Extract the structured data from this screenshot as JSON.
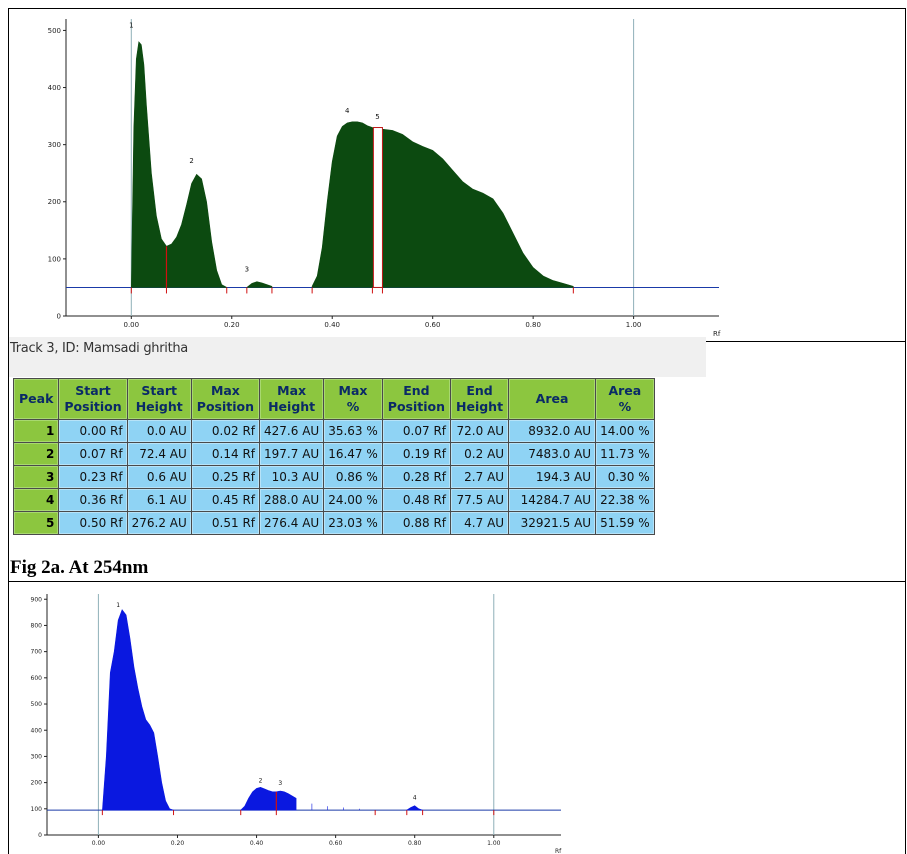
{
  "chart_data": [
    {
      "type": "area",
      "title": "",
      "xlabel": "Rf",
      "ylabel": "",
      "xlim": [
        -0.13,
        1.17
      ],
      "ylim": [
        0,
        520
      ],
      "x_ticks": [
        "0.00",
        "0.20",
        "0.40",
        "0.60",
        "0.80",
        "1.00"
      ],
      "y_ticks": [
        "0",
        "100",
        "200",
        "300",
        "400",
        "500"
      ],
      "fill_color": "#0c4a10",
      "baseline_color": "#1a3aa8",
      "baseline_level": 50,
      "peak_labels": [
        "1",
        "2",
        "3",
        "4",
        "5"
      ],
      "peak_label_pos": [
        [
          0.0,
          505
        ],
        [
          0.12,
          268
        ],
        [
          0.23,
          78
        ],
        [
          0.43,
          355
        ],
        [
          0.49,
          345
        ]
      ],
      "profile": [
        [
          0.0,
          50
        ],
        [
          0.005,
          330
        ],
        [
          0.01,
          450
        ],
        [
          0.015,
          480
        ],
        [
          0.02,
          475
        ],
        [
          0.025,
          440
        ],
        [
          0.03,
          370
        ],
        [
          0.04,
          250
        ],
        [
          0.05,
          175
        ],
        [
          0.06,
          135
        ],
        [
          0.07,
          122
        ],
        [
          0.08,
          126
        ],
        [
          0.09,
          138
        ],
        [
          0.1,
          160
        ],
        [
          0.11,
          195
        ],
        [
          0.12,
          232
        ],
        [
          0.13,
          248
        ],
        [
          0.14,
          240
        ],
        [
          0.15,
          200
        ],
        [
          0.16,
          130
        ],
        [
          0.17,
          80
        ],
        [
          0.18,
          55
        ],
        [
          0.19,
          50
        ],
        [
          0.23,
          50
        ],
        [
          0.24,
          57
        ],
        [
          0.25,
          60
        ],
        [
          0.26,
          58
        ],
        [
          0.28,
          52
        ],
        [
          0.36,
          52
        ],
        [
          0.37,
          70
        ],
        [
          0.38,
          120
        ],
        [
          0.39,
          200
        ],
        [
          0.4,
          270
        ],
        [
          0.41,
          315
        ],
        [
          0.42,
          332
        ],
        [
          0.43,
          338
        ],
        [
          0.44,
          340
        ],
        [
          0.45,
          340
        ],
        [
          0.46,
          338
        ],
        [
          0.47,
          333
        ],
        [
          0.48,
          330
        ],
        [
          0.5,
          327
        ],
        [
          0.52,
          325
        ],
        [
          0.54,
          318
        ],
        [
          0.56,
          305
        ],
        [
          0.58,
          297
        ],
        [
          0.6,
          290
        ],
        [
          0.62,
          275
        ],
        [
          0.64,
          255
        ],
        [
          0.66,
          235
        ],
        [
          0.68,
          222
        ],
        [
          0.7,
          215
        ],
        [
          0.72,
          205
        ],
        [
          0.74,
          180
        ],
        [
          0.76,
          145
        ],
        [
          0.78,
          110
        ],
        [
          0.8,
          85
        ],
        [
          0.82,
          70
        ],
        [
          0.84,
          62
        ],
        [
          0.86,
          57
        ],
        [
          0.88,
          52
        ]
      ]
    },
    {
      "type": "area",
      "title": "",
      "xlabel": "Rf",
      "ylabel": "",
      "xlim": [
        -0.13,
        1.17
      ],
      "ylim": [
        0,
        920
      ],
      "x_ticks": [
        "0.00",
        "0.20",
        "0.40",
        "0.60",
        "0.80",
        "1.00"
      ],
      "y_ticks": [
        "0",
        "100",
        "200",
        "300",
        "400",
        "500",
        "600",
        "700",
        "800",
        "900"
      ],
      "fill_color": "#0a18e0",
      "baseline_color": "#1a3aa8",
      "baseline_level": 95,
      "peak_labels": [
        "1",
        "2",
        "3",
        "4"
      ],
      "peak_label_pos": [
        [
          0.05,
          870
        ],
        [
          0.41,
          200
        ],
        [
          0.46,
          190
        ],
        [
          0.8,
          135
        ]
      ],
      "profile": [
        [
          0.01,
          95
        ],
        [
          0.02,
          300
        ],
        [
          0.03,
          620
        ],
        [
          0.04,
          700
        ],
        [
          0.05,
          820
        ],
        [
          0.06,
          860
        ],
        [
          0.07,
          840
        ],
        [
          0.08,
          750
        ],
        [
          0.09,
          640
        ],
        [
          0.1,
          560
        ],
        [
          0.11,
          490
        ],
        [
          0.12,
          440
        ],
        [
          0.13,
          420
        ],
        [
          0.14,
          390
        ],
        [
          0.15,
          300
        ],
        [
          0.16,
          200
        ],
        [
          0.17,
          130
        ],
        [
          0.18,
          100
        ],
        [
          0.19,
          95
        ],
        [
          0.36,
          95
        ],
        [
          0.37,
          110
        ],
        [
          0.38,
          140
        ],
        [
          0.39,
          165
        ],
        [
          0.4,
          178
        ],
        [
          0.41,
          182
        ],
        [
          0.42,
          176
        ],
        [
          0.43,
          170
        ],
        [
          0.44,
          165
        ],
        [
          0.45,
          165
        ],
        [
          0.46,
          168
        ],
        [
          0.47,
          165
        ],
        [
          0.48,
          158
        ],
        [
          0.5,
          140
        ],
        [
          0.54,
          120
        ],
        [
          0.58,
          110
        ],
        [
          0.62,
          105
        ],
        [
          0.66,
          100
        ],
        [
          0.7,
          95
        ],
        [
          0.78,
          95
        ],
        [
          0.79,
          105
        ],
        [
          0.8,
          112
        ],
        [
          0.81,
          100
        ],
        [
          0.82,
          95
        ]
      ]
    }
  ],
  "track_caption": "Track 3, ID: Mamsadi ghritha",
  "table": {
    "headers": [
      [
        "Peak",
        ""
      ],
      [
        "Start",
        "Position"
      ],
      [
        "Start",
        "Height"
      ],
      [
        "Max",
        "Position"
      ],
      [
        "Max",
        "Height"
      ],
      [
        "Max",
        "%"
      ],
      [
        "End",
        "Position"
      ],
      [
        "End",
        "Height"
      ],
      [
        "Area",
        ""
      ],
      [
        "Area",
        "%"
      ]
    ],
    "rows": [
      [
        "1",
        "0.00 Rf",
        "0.0 AU",
        "0.02 Rf",
        "427.6 AU",
        "35.63 %",
        "0.07 Rf",
        "72.0 AU",
        "8932.0 AU",
        "14.00 %"
      ],
      [
        "2",
        "0.07 Rf",
        "72.4 AU",
        "0.14 Rf",
        "197.7 AU",
        "16.47 %",
        "0.19 Rf",
        "0.2 AU",
        "7483.0 AU",
        "11.73 %"
      ],
      [
        "3",
        "0.23 Rf",
        "0.6 AU",
        "0.25 Rf",
        "10.3 AU",
        "0.86 %",
        "0.28 Rf",
        "2.7 AU",
        "194.3 AU",
        "0.30 %"
      ],
      [
        "4",
        "0.36 Rf",
        "6.1 AU",
        "0.45 Rf",
        "288.0 AU",
        "24.00 %",
        "0.48 Rf",
        "77.5 AU",
        "14284.7 AU",
        "22.38 %"
      ],
      [
        "5",
        "0.50 Rf",
        "276.2 AU",
        "0.51 Rf",
        "276.4 AU",
        "23.03 %",
        "0.88 Rf",
        "4.7 AU",
        "32921.5 AU",
        "51.59 %"
      ]
    ]
  },
  "figure_caption": "Fig 2a. At 254nm"
}
